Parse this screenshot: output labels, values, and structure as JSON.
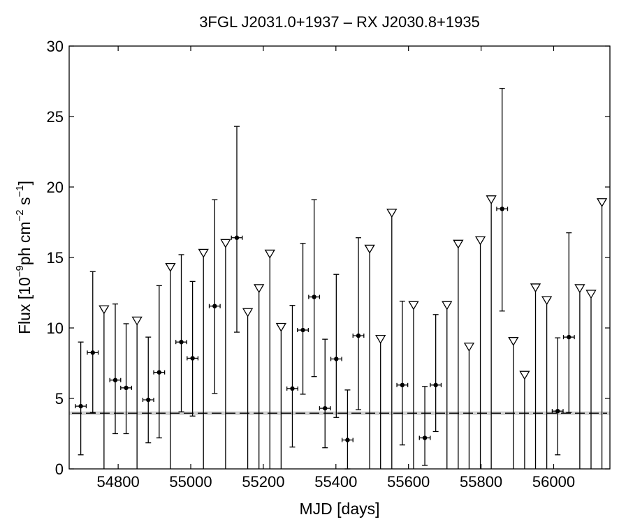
{
  "chart_data": {
    "type": "scatter",
    "title": "3FGL J2031.0+1937 – RX J2030.8+1935",
    "xlabel": "MJD [days]",
    "ylabel": {
      "prefix": "Flux [10",
      "exp1": "−9",
      "mid1": "ph cm",
      "exp2": "−2",
      "mid2": " s",
      "exp3": "−1",
      "suffix": "]"
    },
    "xlim": [
      54665,
      56155
    ],
    "ylim": [
      0,
      30
    ],
    "xticks": [
      54800,
      55000,
      55200,
      55400,
      55600,
      55800,
      56000
    ],
    "yticks": [
      0,
      5,
      10,
      15,
      20,
      25,
      30
    ],
    "grid": false,
    "baseline": {
      "value": 3.95,
      "band": [
        3.82,
        4.08
      ],
      "band_color": "#d3d3d3",
      "line_color": "#000000"
    },
    "colors": {
      "marker": "#000000",
      "upper_limit_fill": "#ffffff"
    },
    "bin_half_width_days": 15,
    "detections": [
      {
        "x": 54697,
        "y": 4.45,
        "low": 1.0,
        "high": 9.0
      },
      {
        "x": 54730,
        "y": 8.25,
        "low": 4.0,
        "high": 14.0
      },
      {
        "x": 54792,
        "y": 6.3,
        "low": 2.5,
        "high": 11.7
      },
      {
        "x": 54822,
        "y": 5.75,
        "low": 2.5,
        "high": 10.3
      },
      {
        "x": 54883,
        "y": 4.9,
        "low": 1.85,
        "high": 9.35
      },
      {
        "x": 54913,
        "y": 6.85,
        "low": 2.2,
        "high": 13.0
      },
      {
        "x": 54974,
        "y": 9.0,
        "low": 4.05,
        "high": 15.2
      },
      {
        "x": 55005,
        "y": 7.85,
        "low": 3.75,
        "high": 13.3
      },
      {
        "x": 55066,
        "y": 11.55,
        "low": 5.35,
        "high": 19.1
      },
      {
        "x": 55127,
        "y": 16.4,
        "low": 9.7,
        "high": 24.3
      },
      {
        "x": 55280,
        "y": 5.7,
        "low": 1.55,
        "high": 11.6
      },
      {
        "x": 55309,
        "y": 9.85,
        "low": 5.3,
        "high": 16.0
      },
      {
        "x": 55340,
        "y": 12.2,
        "low": 6.55,
        "high": 19.1
      },
      {
        "x": 55370,
        "y": 4.3,
        "low": 1.5,
        "high": 9.2
      },
      {
        "x": 55401,
        "y": 7.8,
        "low": 3.65,
        "high": 13.8
      },
      {
        "x": 55432,
        "y": 2.05,
        "low": 0.0,
        "high": 5.6
      },
      {
        "x": 55462,
        "y": 9.45,
        "low": 4.2,
        "high": 16.4
      },
      {
        "x": 55583,
        "y": 5.95,
        "low": 1.7,
        "high": 11.9
      },
      {
        "x": 55645,
        "y": 2.2,
        "low": 0.25,
        "high": 5.85
      },
      {
        "x": 55675,
        "y": 5.95,
        "low": 2.65,
        "high": 10.95
      },
      {
        "x": 55858,
        "y": 18.45,
        "low": 11.2,
        "high": 27.0
      },
      {
        "x": 56011,
        "y": 4.1,
        "low": 1.0,
        "high": 9.3
      },
      {
        "x": 56042,
        "y": 9.35,
        "low": 4.0,
        "high": 16.75
      }
    ],
    "upper_limits": [
      {
        "x": 54761,
        "y": 11.3
      },
      {
        "x": 54852,
        "y": 10.5
      },
      {
        "x": 54944,
        "y": 14.3
      },
      {
        "x": 55035,
        "y": 15.3
      },
      {
        "x": 55096,
        "y": 16.0
      },
      {
        "x": 55157,
        "y": 11.1
      },
      {
        "x": 55188,
        "y": 12.8
      },
      {
        "x": 55218,
        "y": 15.25
      },
      {
        "x": 55249,
        "y": 10.05
      },
      {
        "x": 55493,
        "y": 15.6
      },
      {
        "x": 55523,
        "y": 9.2
      },
      {
        "x": 55554,
        "y": 18.15
      },
      {
        "x": 55614,
        "y": 11.6
      },
      {
        "x": 55706,
        "y": 11.6
      },
      {
        "x": 55737,
        "y": 15.95
      },
      {
        "x": 55767,
        "y": 8.65
      },
      {
        "x": 55798,
        "y": 16.2
      },
      {
        "x": 55828,
        "y": 19.1
      },
      {
        "x": 55889,
        "y": 9.05
      },
      {
        "x": 55920,
        "y": 6.65
      },
      {
        "x": 55950,
        "y": 12.85
      },
      {
        "x": 55981,
        "y": 11.95
      },
      {
        "x": 56072,
        "y": 12.8
      },
      {
        "x": 56103,
        "y": 12.4
      },
      {
        "x": 56133,
        "y": 18.9
      }
    ]
  }
}
